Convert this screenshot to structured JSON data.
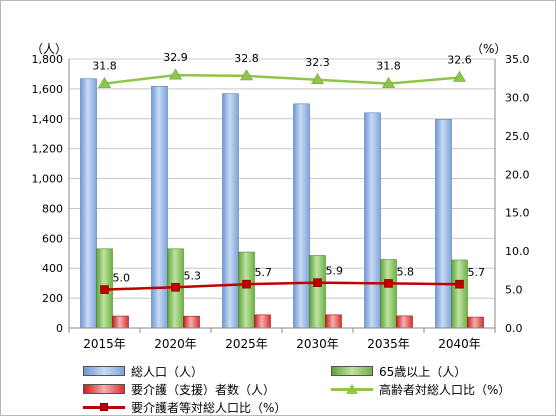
{
  "chart_data": {
    "type": "bar",
    "categories": [
      "2015年",
      "2020年",
      "2025年",
      "2030年",
      "2035年",
      "2040年"
    ],
    "left_axis": {
      "unit": "（人）",
      "ylim": [
        0,
        1800
      ],
      "ticks": [
        "0",
        "200",
        "400",
        "600",
        "800",
        "1,000",
        "1,200",
        "1,400",
        "1,600",
        "1,800"
      ],
      "tick_values": [
        0,
        200,
        400,
        600,
        800,
        1000,
        1200,
        1400,
        1600,
        1800
      ]
    },
    "right_axis": {
      "unit": "（%）",
      "ylim": [
        0,
        35
      ],
      "ticks": [
        "0.0",
        "5.0",
        "10.0",
        "15.0",
        "20.0",
        "25.0",
        "30.0",
        "35.0"
      ],
      "tick_values": [
        0,
        5,
        10,
        15,
        20,
        25,
        30,
        35
      ]
    },
    "series": [
      {
        "name": "総人口（人）",
        "kind": "bar",
        "axis": "left",
        "color": "#9ab9e4",
        "values": [
          1668,
          1617,
          1568,
          1500,
          1440,
          1396
        ]
      },
      {
        "name": "65歳以上（人）",
        "kind": "bar",
        "axis": "left",
        "color": "#7fbf4d",
        "values": [
          530,
          530,
          508,
          485,
          458,
          455
        ]
      },
      {
        "name": "要介護（支援）者数（人）",
        "kind": "bar",
        "axis": "left",
        "color": "#e03c3c",
        "values": [
          80,
          79,
          88,
          88,
          81,
          73
        ]
      },
      {
        "name": "高齢者対総人口比（%）",
        "kind": "line",
        "axis": "right",
        "color": "#8ec64a",
        "values": [
          31.8,
          32.9,
          32.8,
          32.3,
          31.8,
          32.6
        ],
        "labels": [
          "31.8",
          "32.9",
          "32.8",
          "32.3",
          "31.8",
          "32.6"
        ]
      },
      {
        "name": "要介護者等対総人口比（%）",
        "kind": "line",
        "axis": "right",
        "color": "#c00000",
        "values": [
          5.0,
          5.3,
          5.7,
          5.9,
          5.8,
          5.7
        ],
        "labels": [
          "5.0",
          "5.3",
          "5.7",
          "5.9",
          "5.8",
          "5.7"
        ]
      }
    ],
    "grid": true,
    "legend_position": "bottom"
  }
}
